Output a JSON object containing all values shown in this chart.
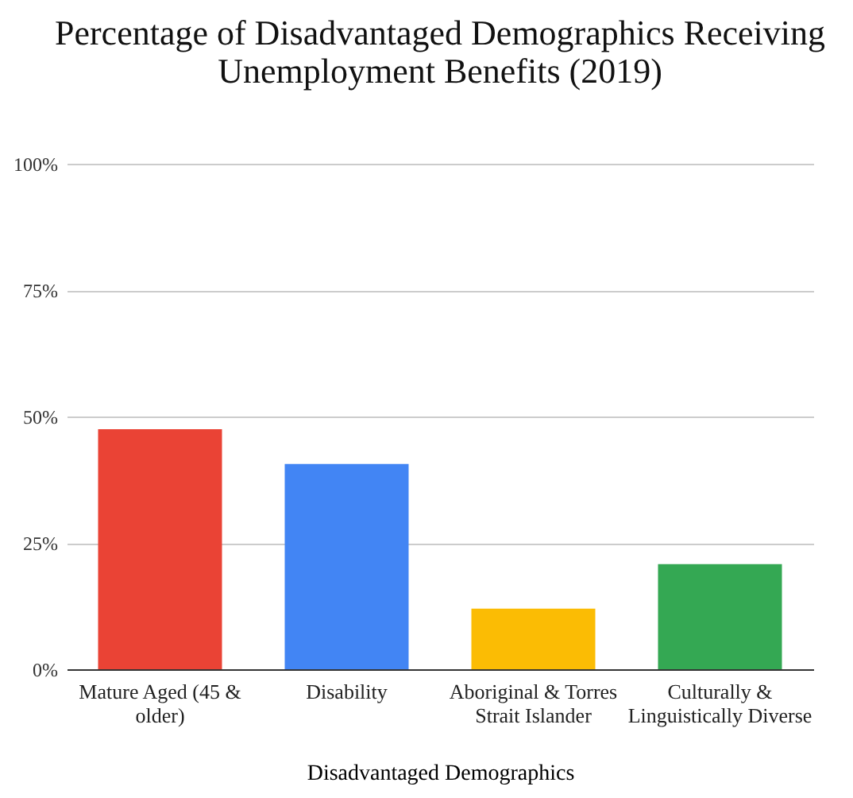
{
  "chart_data": {
    "type": "bar",
    "title": "Percentage of Disadvantaged Demographics Receiving Unemployment Benefits (2019)",
    "xlabel": "Disadvantaged Demographics",
    "categories": [
      "Mature Aged (45 & older)",
      "Disability",
      "Aboriginal & Torres Strait Islander",
      "Culturally & Linguistically Diverse"
    ],
    "values": [
      47.5,
      40.6,
      12,
      20.8
    ],
    "colors": [
      "#ea4335",
      "#4285f4",
      "#fbbc04",
      "#34a853"
    ],
    "ylim": [
      0,
      100
    ],
    "yticks": [
      {
        "value": 0,
        "label": "0%"
      },
      {
        "value": 25,
        "label": "25%"
      },
      {
        "value": 50,
        "label": "50%"
      },
      {
        "value": 75,
        "label": "75%"
      },
      {
        "value": 100,
        "label": "100%"
      }
    ],
    "grid": "y"
  }
}
